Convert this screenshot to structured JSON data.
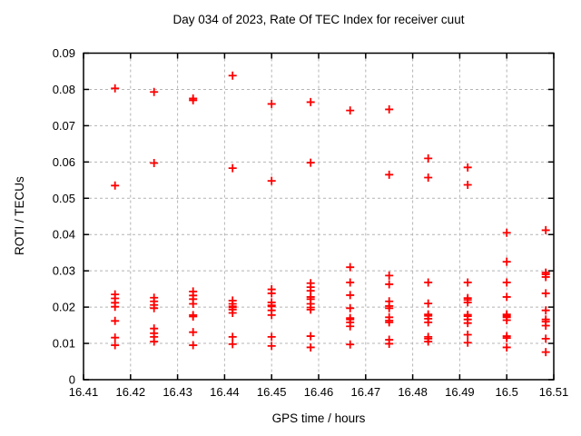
{
  "colors": {
    "marker": "#ff0000",
    "grid": "#b4b4b4",
    "axis": "#000000",
    "background": "#ffffff"
  },
  "chart_data": {
    "type": "scatter",
    "title": "Day 034 of 2023, Rate Of TEC Index for receiver cuut",
    "xlabel": "GPS time / hours",
    "ylabel": "ROTI / TECUs",
    "xlim": [
      16.41,
      16.51
    ],
    "ylim": [
      0,
      0.09
    ],
    "xticks": [
      16.41,
      16.42,
      16.43,
      16.44,
      16.45,
      16.46,
      16.47,
      16.48,
      16.49,
      16.5,
      16.51
    ],
    "xtick_labels": [
      "16.41",
      "16.42",
      "16.43",
      "16.44",
      "16.45",
      "16.46",
      "16.47",
      "16.48",
      "16.49",
      "16.5",
      "16.51"
    ],
    "yticks": [
      0,
      0.01,
      0.02,
      0.03,
      0.04,
      0.05,
      0.06,
      0.07,
      0.08,
      0.09
    ],
    "ytick_labels": [
      "0",
      "0.01",
      "0.02",
      "0.03",
      "0.04",
      "0.05",
      "0.06",
      "0.07",
      "0.08",
      "0.09"
    ],
    "grid": true,
    "grid_style": "dashed",
    "legend": "none",
    "marker": {
      "shape": "plus",
      "size": 9
    },
    "series": [
      {
        "name": "ROTI",
        "points": [
          [
            16.4167,
            0.0803
          ],
          [
            16.4167,
            0.0535
          ],
          [
            16.4167,
            0.0235
          ],
          [
            16.4167,
            0.0224
          ],
          [
            16.4167,
            0.0212
          ],
          [
            16.4167,
            0.0201
          ],
          [
            16.4167,
            0.0162
          ],
          [
            16.4167,
            0.0116
          ],
          [
            16.4167,
            0.0095
          ],
          [
            16.425,
            0.0793
          ],
          [
            16.425,
            0.0597
          ],
          [
            16.425,
            0.0226
          ],
          [
            16.425,
            0.0216
          ],
          [
            16.425,
            0.0206
          ],
          [
            16.425,
            0.0197
          ],
          [
            16.425,
            0.0141
          ],
          [
            16.425,
            0.0128
          ],
          [
            16.425,
            0.0118
          ],
          [
            16.425,
            0.0105
          ],
          [
            16.4333,
            0.0775
          ],
          [
            16.4333,
            0.077
          ],
          [
            16.4333,
            0.0243
          ],
          [
            16.4333,
            0.0232
          ],
          [
            16.4333,
            0.0222
          ],
          [
            16.4333,
            0.0209
          ],
          [
            16.4333,
            0.0178
          ],
          [
            16.4333,
            0.0174
          ],
          [
            16.4333,
            0.0131
          ],
          [
            16.4333,
            0.0095
          ],
          [
            16.4417,
            0.0838
          ],
          [
            16.4417,
            0.0583
          ],
          [
            16.4417,
            0.0218
          ],
          [
            16.4417,
            0.0209
          ],
          [
            16.4417,
            0.0202
          ],
          [
            16.4417,
            0.0199
          ],
          [
            16.4417,
            0.0193
          ],
          [
            16.4417,
            0.0184
          ],
          [
            16.4417,
            0.0118
          ],
          [
            16.4417,
            0.0098
          ],
          [
            16.45,
            0.076
          ],
          [
            16.45,
            0.0548
          ],
          [
            16.45,
            0.0249
          ],
          [
            16.45,
            0.0238
          ],
          [
            16.45,
            0.0213
          ],
          [
            16.45,
            0.0205
          ],
          [
            16.45,
            0.0202
          ],
          [
            16.45,
            0.0191
          ],
          [
            16.45,
            0.0178
          ],
          [
            16.45,
            0.0118
          ],
          [
            16.45,
            0.0093
          ],
          [
            16.4583,
            0.0765
          ],
          [
            16.4583,
            0.0598
          ],
          [
            16.4583,
            0.0266
          ],
          [
            16.4583,
            0.0255
          ],
          [
            16.4583,
            0.0245
          ],
          [
            16.4583,
            0.0228
          ],
          [
            16.4583,
            0.0222
          ],
          [
            16.4583,
            0.0209
          ],
          [
            16.4583,
            0.0199
          ],
          [
            16.4583,
            0.0193
          ],
          [
            16.4583,
            0.012
          ],
          [
            16.4583,
            0.0089
          ],
          [
            16.4667,
            0.0742
          ],
          [
            16.4667,
            0.031
          ],
          [
            16.4667,
            0.0268
          ],
          [
            16.4667,
            0.0233
          ],
          [
            16.4667,
            0.0197
          ],
          [
            16.4667,
            0.017
          ],
          [
            16.4667,
            0.0166
          ],
          [
            16.4667,
            0.0158
          ],
          [
            16.4667,
            0.0147
          ],
          [
            16.4667,
            0.0097
          ],
          [
            16.475,
            0.0745
          ],
          [
            16.475,
            0.0565
          ],
          [
            16.475,
            0.0287
          ],
          [
            16.475,
            0.0263
          ],
          [
            16.475,
            0.0216
          ],
          [
            16.475,
            0.0203
          ],
          [
            16.475,
            0.0197
          ],
          [
            16.475,
            0.0172
          ],
          [
            16.475,
            0.0163
          ],
          [
            16.475,
            0.0158
          ],
          [
            16.475,
            0.011
          ],
          [
            16.475,
            0.0099
          ],
          [
            16.4833,
            0.061
          ],
          [
            16.4833,
            0.0557
          ],
          [
            16.4833,
            0.0268
          ],
          [
            16.4833,
            0.021
          ],
          [
            16.4833,
            0.018
          ],
          [
            16.4833,
            0.0176
          ],
          [
            16.4833,
            0.0168
          ],
          [
            16.4833,
            0.0158
          ],
          [
            16.4833,
            0.0118
          ],
          [
            16.4833,
            0.0113
          ],
          [
            16.4833,
            0.0105
          ],
          [
            16.4917,
            0.0585
          ],
          [
            16.4917,
            0.0537
          ],
          [
            16.4917,
            0.0268
          ],
          [
            16.4917,
            0.0225
          ],
          [
            16.4917,
            0.022
          ],
          [
            16.4917,
            0.0213
          ],
          [
            16.4917,
            0.0179
          ],
          [
            16.4917,
            0.0175
          ],
          [
            16.4917,
            0.0166
          ],
          [
            16.4917,
            0.0156
          ],
          [
            16.4917,
            0.0124
          ],
          [
            16.4917,
            0.0102
          ],
          [
            16.5,
            0.0405
          ],
          [
            16.5,
            0.0325
          ],
          [
            16.5,
            0.0268
          ],
          [
            16.5,
            0.0228
          ],
          [
            16.5,
            0.018
          ],
          [
            16.5,
            0.0176
          ],
          [
            16.5,
            0.0172
          ],
          [
            16.5,
            0.0164
          ],
          [
            16.5,
            0.012
          ],
          [
            16.5,
            0.0115
          ],
          [
            16.5,
            0.0089
          ],
          [
            16.5083,
            0.0412
          ],
          [
            16.5083,
            0.0295
          ],
          [
            16.5083,
            0.029
          ],
          [
            16.5083,
            0.0283
          ],
          [
            16.5083,
            0.0238
          ],
          [
            16.5083,
            0.0191
          ],
          [
            16.5083,
            0.0166
          ],
          [
            16.5083,
            0.016
          ],
          [
            16.5083,
            0.0149
          ],
          [
            16.5083,
            0.0113
          ],
          [
            16.5083,
            0.0076
          ]
        ]
      }
    ]
  }
}
